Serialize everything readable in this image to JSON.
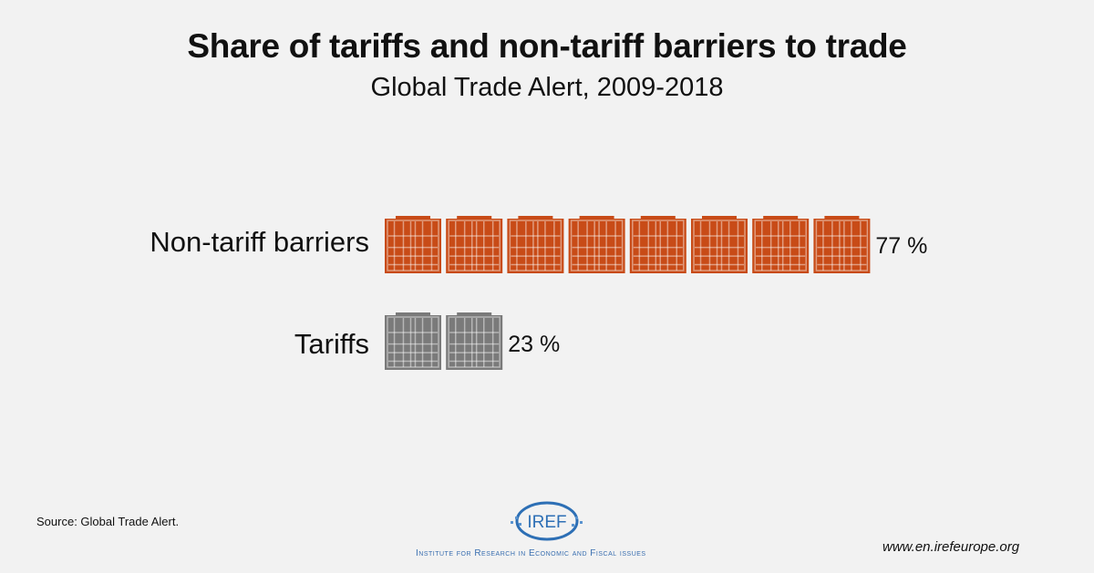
{
  "chart_data": {
    "type": "bar",
    "style": "pictogram",
    "title": "Share of tariffs and non-tariff barriers to trade",
    "subtitle": "Global Trade Alert, 2009-2018",
    "categories": [
      "Non-tariff barriers",
      "Tariffs"
    ],
    "values": [
      77,
      23
    ],
    "unit": "%",
    "value_labels": [
      "77 %",
      "23 %"
    ],
    "icon": "shipping-container-icon",
    "icon_counts": [
      8,
      2
    ],
    "colors": [
      "#c84b17",
      "#7a7a7a"
    ],
    "xlabel": "",
    "ylabel": ""
  },
  "footer": {
    "source": "Source: Global Trade Alert.",
    "url": "www.en.irefeurope.org",
    "logo_text": "IREF",
    "institute": "Institute for Research in Economic and Fiscal issues"
  }
}
